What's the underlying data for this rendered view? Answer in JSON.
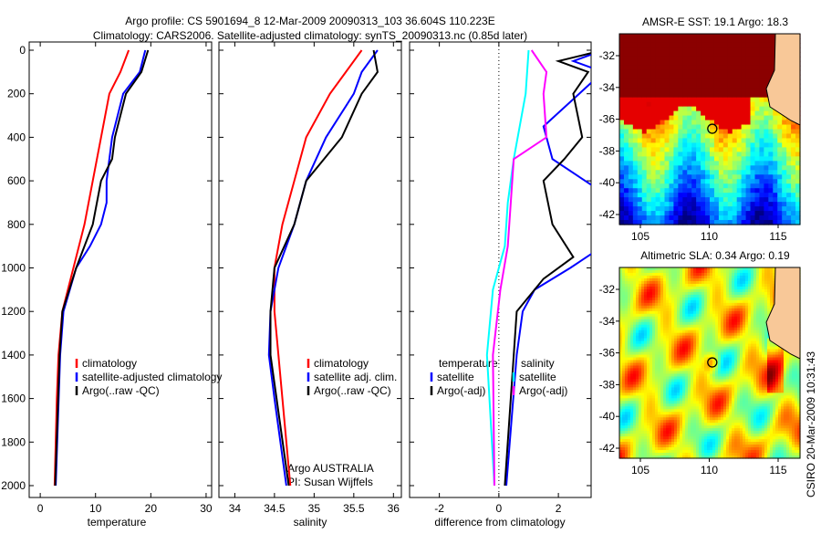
{
  "chart_data": [
    {
      "type": "line",
      "title": "Argo profile: CS 5901694_8 12-Mar-2009 20090313_103 36.604S 110.223E",
      "subtitle": "Climatology: CARS2006. Satellite-adjusted climatology: synTS_20090313.nc (0.85d later)",
      "xlabel": "temperature",
      "xlim": [
        -2,
        31
      ],
      "xticks": [
        "0",
        "10",
        "20",
        "30"
      ],
      "xtickvals": [
        0,
        10,
        20,
        30
      ],
      "ylim": [
        0,
        2080
      ],
      "yticks": [
        "0",
        "200",
        "400",
        "600",
        "800",
        "1000",
        "1200",
        "1400",
        "1600",
        "1800",
        "2000"
      ],
      "series": [
        {
          "name": "climatology",
          "color": "#ff0000",
          "depth": [
            0,
            100,
            200,
            400,
            600,
            800,
            1000,
            1200,
            1400,
            1600,
            2000
          ],
          "values": [
            16,
            14.5,
            12.5,
            11,
            9.5,
            8,
            6,
            4,
            3.3,
            3,
            2.6
          ]
        },
        {
          "name": "satellite-adjusted climatology",
          "color": "#0000ff",
          "depth": [
            0,
            100,
            200,
            400,
            600,
            700,
            800,
            900,
            1000,
            1200,
            1400,
            2000
          ],
          "values": [
            19,
            18,
            15,
            13,
            12,
            12,
            11,
            9,
            6.5,
            4.2,
            3.6,
            2.8
          ]
        },
        {
          "name": "Argo(..raw -QC)",
          "color": "#000000",
          "depth": [
            0,
            100,
            200,
            400,
            500,
            600,
            800,
            1000,
            1200,
            1400,
            2000
          ],
          "values": [
            19.5,
            18.3,
            15.5,
            13.5,
            13,
            11,
            9.5,
            6.5,
            4,
            3.5,
            2.7
          ]
        }
      ]
    },
    {
      "type": "line",
      "xlabel": "salinity",
      "xlim": [
        33.8,
        36.1
      ],
      "xticks": [
        "34",
        "34.5",
        "35",
        "35.5",
        "36"
      ],
      "xtickvals": [
        34,
        34.5,
        35,
        35.5,
        36
      ],
      "ylim": [
        0,
        2080
      ],
      "annotation": [
        "Argo AUSTRALIA",
        "PI: Susan Wijffels"
      ],
      "series": [
        {
          "name": "climatology",
          "color": "#ff0000",
          "depth": [
            0,
            100,
            200,
            400,
            600,
            800,
            1000,
            1200,
            1400,
            1600,
            2000
          ],
          "values": [
            35.6,
            35.4,
            35.2,
            34.9,
            34.75,
            34.6,
            34.5,
            34.5,
            34.55,
            34.6,
            34.7
          ]
        },
        {
          "name": "satellite adj. clim.",
          "color": "#0000ff",
          "depth": [
            0,
            100,
            200,
            400,
            600,
            800,
            1000,
            1200,
            1400,
            1600,
            2000
          ],
          "values": [
            35.8,
            35.6,
            35.5,
            35.15,
            34.9,
            34.75,
            34.55,
            34.45,
            34.43,
            34.5,
            34.65
          ]
        },
        {
          "name": "Argo(..raw -QC)",
          "color": "#000000",
          "depth": [
            0,
            100,
            200,
            400,
            600,
            800,
            1000,
            1200,
            1400,
            2000
          ],
          "values": [
            35.75,
            35.8,
            35.6,
            35.35,
            34.9,
            34.75,
            34.5,
            34.45,
            34.45,
            34.68
          ]
        }
      ]
    },
    {
      "type": "line",
      "xlabel": "difference from climatology",
      "xlim": [
        -3,
        3.1
      ],
      "xticks": [
        "-2",
        "0",
        "2"
      ],
      "xtickvals": [
        -2,
        0,
        2
      ],
      "ylim": [
        0,
        2080
      ],
      "legend_headers": [
        "temperature",
        "salinity"
      ],
      "series": [
        {
          "name": "satellite",
          "group": "temperature",
          "color": "#0000ff",
          "depth": [
            0,
            50,
            100,
            350,
            500,
            700,
            900,
            1000,
            1100,
            1200,
            1400,
            2000
          ],
          "values": [
            3.5,
            2.5,
            3.5,
            1.5,
            1.8,
            4,
            3.5,
            2.4,
            1.2,
            0.8,
            0.6,
            0.25
          ]
        },
        {
          "name": "Argo(-adj)",
          "group": "temperature",
          "color": "#000000",
          "depth": [
            0,
            50,
            100,
            200,
            400,
            500,
            600,
            800,
            950,
            1050,
            1200,
            1400,
            2000
          ],
          "values": [
            3.5,
            2,
            3,
            2.5,
            2.8,
            2.2,
            1.5,
            1.8,
            2.5,
            1.5,
            0.6,
            0.5,
            0.2
          ]
        },
        {
          "name": "satellite",
          "group": "salinity",
          "color": "#00ffff",
          "depth": [
            0,
            200,
            500,
            700,
            900,
            1100,
            1400,
            2000
          ],
          "values": [
            1,
            0.9,
            0.5,
            0.3,
            0.2,
            -0.2,
            -0.4,
            -0.15
          ]
        },
        {
          "name": "Argo(-adj)",
          "group": "salinity",
          "color": "#ff00ff",
          "depth": [
            0,
            100,
            200,
            400,
            500,
            700,
            900,
            1100,
            1400,
            2000
          ],
          "values": [
            1.1,
            1.6,
            1.5,
            1.6,
            0.5,
            0.4,
            0.3,
            0.05,
            -0.2,
            -0.15
          ]
        }
      ]
    },
    {
      "type": "heatmap",
      "title": "AMSR-E SST: 19.1 Argo: 18.3",
      "xticks": [
        "105",
        "110",
        "115"
      ],
      "yticks": [
        "-32",
        "-34",
        "-36",
        "-38",
        "-40",
        "-42"
      ],
      "marker": [
        110.223,
        -36.604
      ]
    },
    {
      "type": "heatmap",
      "title": "Altimetric SLA: 0.34 Argo: 0.19",
      "xticks": [
        "105",
        "110",
        "115"
      ],
      "yticks": [
        "-32",
        "-34",
        "-36",
        "-38",
        "-40",
        "-42"
      ],
      "marker": [
        110.223,
        -36.604
      ]
    }
  ],
  "footer": "CSIRO 20-Mar-2009 10:31:43"
}
